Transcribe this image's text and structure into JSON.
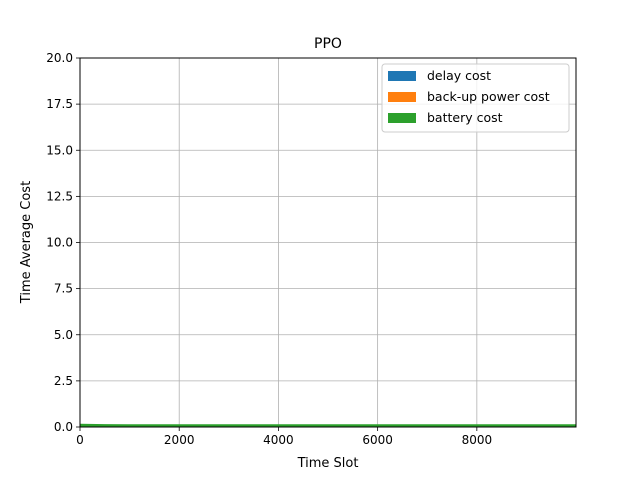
{
  "chart_data": {
    "type": "area",
    "title": "PPO",
    "xlabel": "Time Slot",
    "ylabel": "Time Average Cost",
    "xlim": [
      0,
      9999
    ],
    "ylim": [
      0,
      20
    ],
    "xticks": [
      0,
      2000,
      4000,
      6000,
      8000
    ],
    "xtick_labels": [
      "0",
      "2000",
      "4000",
      "6000",
      "8000"
    ],
    "yticks": [
      0,
      2.5,
      5,
      7.5,
      10,
      12.5,
      15,
      17.5,
      20
    ],
    "ytick_labels": [
      "0.0",
      "2.5",
      "5.0",
      "7.5",
      "10.0",
      "12.5",
      "15.0",
      "17.5",
      "20.0"
    ],
    "grid": true,
    "stacked": true,
    "legend_position": "top-right",
    "x": [
      0,
      500,
      1000,
      2000,
      4000,
      6000,
      8000,
      9999
    ],
    "series": [
      {
        "name": "delay cost",
        "color": "#1f77b4",
        "values": [
          0.02,
          0.02,
          0.02,
          0.02,
          0.02,
          0.02,
          0.02,
          0.02
        ]
      },
      {
        "name": "back-up power cost",
        "color": "#ff7f0e",
        "values": [
          0.01,
          0.01,
          0.01,
          0.01,
          0.01,
          0.01,
          0.01,
          0.01
        ]
      },
      {
        "name": "battery cost",
        "color": "#2ca02c",
        "values": [
          0.12,
          0.1,
          0.09,
          0.09,
          0.09,
          0.09,
          0.09,
          0.09
        ]
      }
    ]
  }
}
